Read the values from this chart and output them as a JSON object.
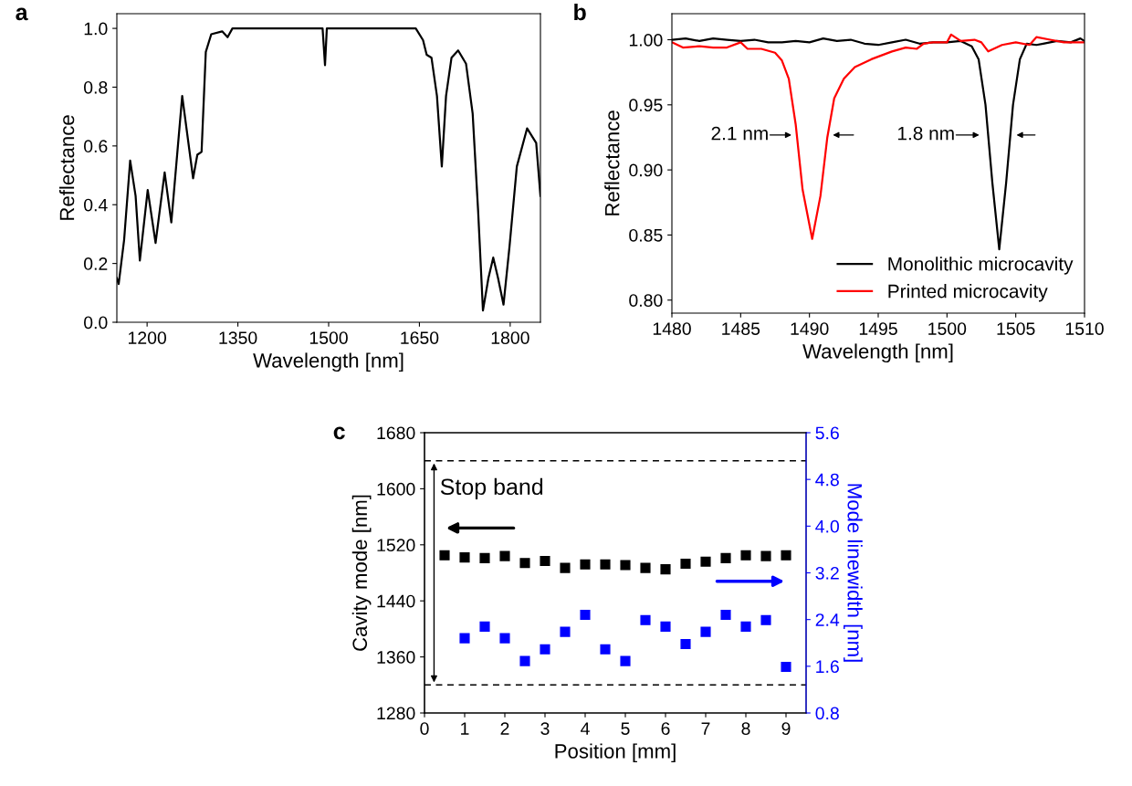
{
  "chart_data": [
    {
      "type": "line",
      "title": "a",
      "xlabel": "Wavelength [nm]",
      "ylabel": "Reflectance",
      "xlim": [
        1150,
        1850
      ],
      "ylim": [
        0,
        1.05
      ],
      "xticks": [
        1200,
        1350,
        1500,
        1650,
        1800
      ],
      "yticks": [
        {
          "value": 0,
          "label": "0.0"
        },
        0.2,
        0.4,
        0.6,
        0.8,
        {
          "value": 1,
          "label": "1.0"
        }
      ],
      "series": [
        {
          "color": "#000000",
          "x": [
            1150,
            1153,
            1162,
            1172,
            1181,
            1188,
            1201,
            1214,
            1229,
            1240,
            1258,
            1276,
            1283,
            1290,
            1297,
            1306,
            1324,
            1333,
            1341,
            1481,
            1490,
            1494,
            1497,
            1644,
            1656,
            1662,
            1670,
            1679,
            1687,
            1694,
            1703,
            1714,
            1727,
            1738,
            1747,
            1755,
            1764,
            1772,
            1780,
            1789,
            1799,
            1811,
            1828,
            1843,
            1850
          ],
          "values": [
            0.15,
            0.13,
            0.28,
            0.55,
            0.43,
            0.21,
            0.45,
            0.27,
            0.51,
            0.34,
            0.77,
            0.49,
            0.57,
            0.58,
            0.92,
            0.98,
            0.99,
            0.97,
            1.0,
            1.0,
            1.0,
            0.875,
            1.0,
            1.0,
            0.96,
            0.91,
            0.9,
            0.77,
            0.53,
            0.77,
            0.9,
            0.925,
            0.88,
            0.71,
            0.38,
            0.04,
            0.15,
            0.22,
            0.15,
            0.06,
            0.26,
            0.53,
            0.66,
            0.61,
            0.43
          ]
        }
      ]
    },
    {
      "type": "line",
      "title": "b",
      "xlabel": "Wavelength [nm]",
      "ylabel": "Reflectance",
      "xlim": [
        1480,
        1510
      ],
      "ylim": [
        0.79,
        1.02
      ],
      "xticks": [
        1480,
        1485,
        1490,
        1495,
        1500,
        1505,
        1510
      ],
      "yticks": [
        {
          "value": 0.8,
          "label": "0.80"
        },
        0.85,
        {
          "value": 0.9,
          "label": "0.90"
        },
        0.95,
        {
          "value": 1,
          "label": "1.00"
        }
      ],
      "legend": "bottom right",
      "annotations": [
        "2.1 nm",
        "1.8 nm"
      ],
      "series": [
        {
          "name": "Monolithic microcavity",
          "color": "#000000",
          "x": [
            1480,
            1481,
            1482,
            1483,
            1484,
            1485,
            1486,
            1487,
            1488,
            1489,
            1490,
            1491,
            1492,
            1493,
            1494,
            1495,
            1496,
            1497,
            1498,
            1499,
            1500,
            1501,
            1501.8,
            1502.3,
            1502.8,
            1503.3,
            1503.8,
            1504.3,
            1504.8,
            1505.3,
            1505.8,
            1506.5,
            1507,
            1508,
            1509,
            1509.7,
            1510
          ],
          "values": [
            1.0,
            1.001,
            0.999,
            1.001,
            1.0,
            0.999,
            1.0,
            0.998,
            0.998,
            0.999,
            0.998,
            1.001,
            0.999,
            1.0,
            0.997,
            0.996,
            0.998,
            1.0,
            0.997,
            0.998,
            0.998,
            0.999,
            0.995,
            0.985,
            0.95,
            0.89,
            0.839,
            0.89,
            0.95,
            0.985,
            0.997,
            0.996,
            0.997,
            0.999,
            0.998,
            1.001,
            0.999
          ]
        },
        {
          "name": "Printed microcavity",
          "color": "#ff0000",
          "x": [
            1480,
            1480.8,
            1482,
            1483,
            1484,
            1485,
            1485.5,
            1486.5,
            1487.5,
            1488,
            1488.5,
            1489,
            1489.5,
            1490.2,
            1490.8,
            1491.3,
            1491.8,
            1492.5,
            1493.3,
            1494.5,
            1496,
            1497,
            1497.8,
            1498.3,
            1499,
            1500,
            1500.3,
            1501,
            1502,
            1502.5,
            1503,
            1504,
            1505,
            1506,
            1506.5,
            1507.5,
            1508.5,
            1510
          ],
          "values": [
            0.998,
            0.994,
            0.995,
            0.994,
            0.994,
            0.998,
            0.993,
            0.993,
            0.99,
            0.984,
            0.97,
            0.935,
            0.885,
            0.847,
            0.88,
            0.925,
            0.955,
            0.97,
            0.979,
            0.985,
            0.991,
            0.994,
            0.993,
            0.997,
            0.998,
            0.998,
            1.004,
            0.999,
            1.0,
            0.998,
            0.991,
            0.996,
            0.998,
            0.996,
            1.002,
            1.0,
            0.998,
            0.998
          ]
        }
      ]
    },
    {
      "type": "scatter",
      "title": "c",
      "xlabel": "Position [mm]",
      "ylabel": "Cavity mode [nm]",
      "y2label": "Mode linewidth [nm]",
      "marker": "square",
      "xlim": [
        0,
        9.5
      ],
      "ylim": [
        1280,
        1680
      ],
      "y2lim": [
        0.8,
        5.6
      ],
      "xticks": [
        0,
        1,
        2,
        3,
        4,
        5,
        6,
        7,
        8,
        9
      ],
      "yticks": [
        1280,
        1360,
        1440,
        1520,
        1600,
        1680
      ],
      "y2ticks": [
        0.8,
        1.6,
        2.4,
        3.2,
        {
          "value": 4,
          "label": "4.0"
        },
        4.8,
        5.6
      ],
      "ref_lines": [
        {
          "axis": "y",
          "value": 1640,
          "line_style": "dashed",
          "color": "#000000"
        },
        {
          "axis": "y",
          "value": 1320,
          "line_style": "dashed",
          "color": "#000000"
        }
      ],
      "annotations": [
        "Stop band"
      ],
      "series": [
        {
          "color": "#000000",
          "x": [
            0.5,
            1,
            1.5,
            2,
            2.5,
            3,
            3.5,
            4,
            4.5,
            5,
            5.5,
            6,
            6.5,
            7,
            7.5,
            8,
            8.5,
            9
          ],
          "values": [
            1505,
            1502,
            1501,
            1504,
            1494,
            1497,
            1487,
            1492,
            1492,
            1491,
            1487,
            1485,
            1493,
            1496,
            1501,
            1505,
            1504,
            1505
          ]
        },
        {
          "color": "#0000ff",
          "axis": "y2",
          "x": [
            1,
            1.5,
            2,
            2.5,
            3,
            3.5,
            4,
            4.5,
            5,
            5.5,
            6,
            6.5,
            7,
            7.5,
            8,
            8.5,
            9
          ],
          "values": [
            2.08,
            2.28,
            2.08,
            1.69,
            1.89,
            2.19,
            2.48,
            1.89,
            1.69,
            2.39,
            2.28,
            1.98,
            2.19,
            2.48,
            2.28,
            2.39,
            1.59
          ]
        }
      ]
    }
  ]
}
